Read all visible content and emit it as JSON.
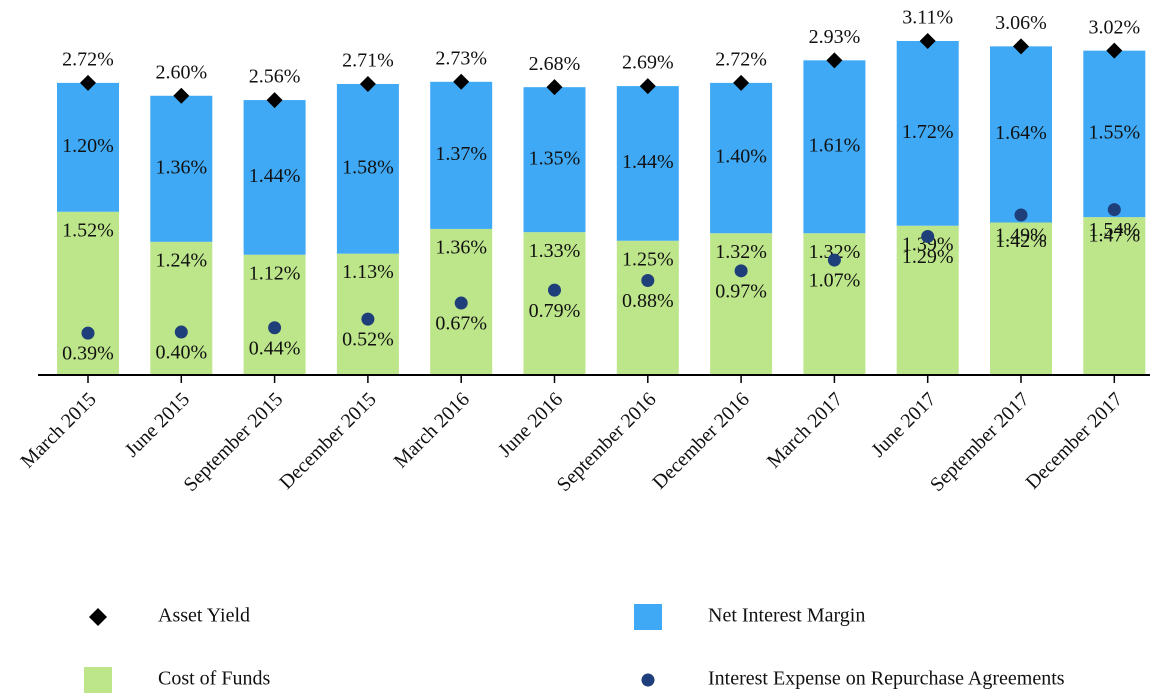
{
  "chart_data": {
    "type": "bar",
    "categories": [
      "March 2015",
      "June 2015",
      "September 2015",
      "December 2015",
      "March 2016",
      "June 2016",
      "September 2016",
      "December 2016",
      "March 2017",
      "June 2017",
      "September 2017",
      "December 2017"
    ],
    "series": [
      {
        "name": "Asset Yield",
        "type": "scatter",
        "marker": "diamond",
        "color": "#000000",
        "values": [
          2.72,
          2.6,
          2.56,
          2.71,
          2.73,
          2.68,
          2.69,
          2.72,
          2.93,
          3.11,
          3.06,
          3.02
        ],
        "value_labels": [
          "2.72%",
          "2.60%",
          "2.56%",
          "2.71%",
          "2.73%",
          "2.68%",
          "2.69%",
          "2.72%",
          "2.93%",
          "3.11%",
          "3.06%",
          "3.02%"
        ]
      },
      {
        "name": "Cost of Funds",
        "type": "bar",
        "color": "#bde58a",
        "values": [
          1.52,
          1.24,
          1.12,
          1.13,
          1.36,
          1.33,
          1.25,
          1.32,
          1.32,
          1.39,
          1.42,
          1.47
        ],
        "value_labels": [
          "1.52%",
          "1.24%",
          "1.12%",
          "1.13%",
          "1.36%",
          "1.33%",
          "1.25%",
          "1.32%",
          "1.32%",
          "1.39%",
          "1.42%",
          "1.47%"
        ]
      },
      {
        "name": "Net Interest Margin",
        "type": "bar",
        "color": "#3fa9f5",
        "values": [
          1.2,
          1.36,
          1.44,
          1.58,
          1.37,
          1.35,
          1.44,
          1.4,
          1.61,
          1.72,
          1.64,
          1.55
        ],
        "value_labels": [
          "1.20%",
          "1.36%",
          "1.44%",
          "1.58%",
          "1.37%",
          "1.35%",
          "1.44%",
          "1.40%",
          "1.61%",
          "1.72%",
          "1.64%",
          "1.55%"
        ]
      },
      {
        "name": "Interest Expense on Repurchase Agreements",
        "type": "scatter",
        "marker": "circle",
        "color": "#1f3f7a",
        "values": [
          0.39,
          0.4,
          0.44,
          0.52,
          0.67,
          0.79,
          0.88,
          0.97,
          1.07,
          1.29,
          1.49,
          1.54
        ],
        "value_labels": [
          "0.39%",
          "0.40%",
          "0.44%",
          "0.52%",
          "0.67%",
          "0.79%",
          "0.88%",
          "0.97%",
          "1.07%",
          "1.29%",
          "1.49%",
          "1.54%"
        ]
      }
    ]
  }
}
